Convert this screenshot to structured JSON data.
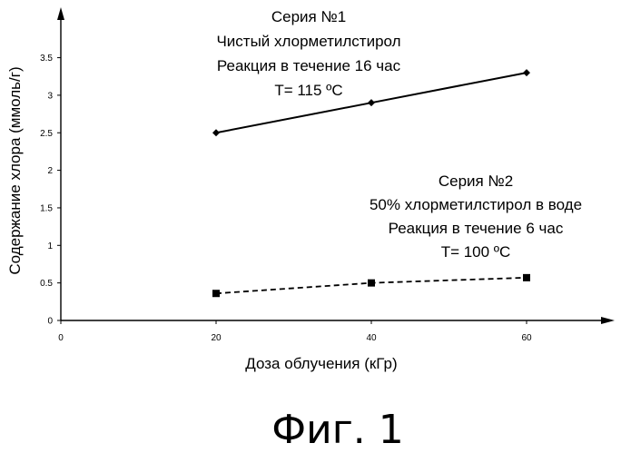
{
  "chart_data": {
    "type": "line",
    "xlabel": "Доза облучения (кГр)",
    "ylabel": "Содержание хлора (ммоль/г)",
    "xlim": [
      0,
      70
    ],
    "ylim": [
      0,
      4.2
    ],
    "x_ticks": [
      0,
      20,
      40,
      60
    ],
    "y_ticks": [
      0,
      0.5,
      1,
      1.5,
      2,
      2.5,
      3,
      3.5
    ],
    "x_tick_labels": [
      "0",
      "20",
      "40",
      "60"
    ],
    "y_tick_labels": [
      "0",
      "0.5",
      "1",
      "1.5",
      "2",
      "2.5",
      "3",
      "3.5"
    ],
    "grid": false,
    "legend": "none",
    "series": [
      {
        "name": "Серия №1",
        "x": [
          20,
          40,
          60
        ],
        "y": [
          2.5,
          2.9,
          3.3
        ],
        "line_style": "solid",
        "marker": "diamond",
        "color": "#000000"
      },
      {
        "name": "Серия №2",
        "x": [
          20,
          40,
          60
        ],
        "y": [
          0.36,
          0.5,
          0.57
        ],
        "line_style": "dashed",
        "marker": "square",
        "color": "#000000"
      }
    ],
    "annotations": [
      {
        "id": "series1-annotation",
        "lines": [
          "Серия №1",
          "Чистый хлорметилстирол",
          "Реакция в течение 16 час",
          "T= 115 ºC"
        ]
      },
      {
        "id": "series2-annotation",
        "lines": [
          "Серия №2",
          "50% хлорметилстирол в воде",
          "Реакция в течение 6 час",
          "T= 100 ºC"
        ]
      }
    ]
  },
  "caption": "Фиг. 1"
}
